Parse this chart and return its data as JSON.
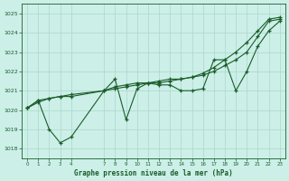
{
  "title": "Graphe pression niveau de la mer (hPa)",
  "bg_color": "#ccefe8",
  "grid_color": "#aad8cc",
  "line_color": "#1a5c2a",
  "ylim": [
    1017.5,
    1025.5
  ],
  "yticks": [
    1018,
    1019,
    1020,
    1021,
    1022,
    1023,
    1024,
    1025
  ],
  "xticks": [
    0,
    1,
    2,
    3,
    4,
    7,
    8,
    9,
    10,
    11,
    12,
    13,
    14,
    15,
    16,
    17,
    18,
    19,
    20,
    21,
    22,
    23
  ],
  "line1_x": [
    0,
    1,
    2,
    3,
    4,
    7,
    8,
    9,
    10,
    11,
    12,
    13,
    14,
    15,
    16,
    17,
    18,
    19,
    20,
    21,
    22,
    23
  ],
  "line1_y": [
    1020.1,
    1020.5,
    1020.6,
    1020.7,
    1020.7,
    1021.0,
    1021.1,
    1021.2,
    1021.3,
    1021.4,
    1021.4,
    1021.5,
    1021.6,
    1021.7,
    1021.8,
    1022.0,
    1022.3,
    1022.6,
    1023.0,
    1023.8,
    1024.6,
    1024.7
  ],
  "line2_x": [
    0,
    1,
    2,
    3,
    4,
    7,
    8,
    9,
    10,
    11,
    12,
    13,
    14,
    15,
    16,
    17,
    18,
    19,
    20,
    21,
    22,
    23
  ],
  "line2_y": [
    1020.1,
    1020.4,
    1020.6,
    1020.7,
    1020.8,
    1021.0,
    1021.2,
    1021.3,
    1021.4,
    1021.4,
    1021.5,
    1021.6,
    1021.6,
    1021.7,
    1021.9,
    1022.2,
    1022.6,
    1023.0,
    1023.5,
    1024.1,
    1024.7,
    1024.8
  ],
  "line3_x": [
    0,
    1,
    2,
    3,
    4,
    7,
    8,
    9,
    10,
    11,
    12,
    13,
    14,
    15,
    16,
    17,
    18,
    19,
    20,
    21,
    22,
    23
  ],
  "line3_y": [
    1020.1,
    1020.5,
    1019.0,
    1018.3,
    1018.6,
    1021.0,
    1021.6,
    1019.5,
    1021.1,
    1021.4,
    1021.3,
    1021.3,
    1021.0,
    1021.0,
    1021.1,
    1022.6,
    1022.6,
    1021.0,
    1022.0,
    1023.3,
    1024.1,
    1024.6
  ]
}
